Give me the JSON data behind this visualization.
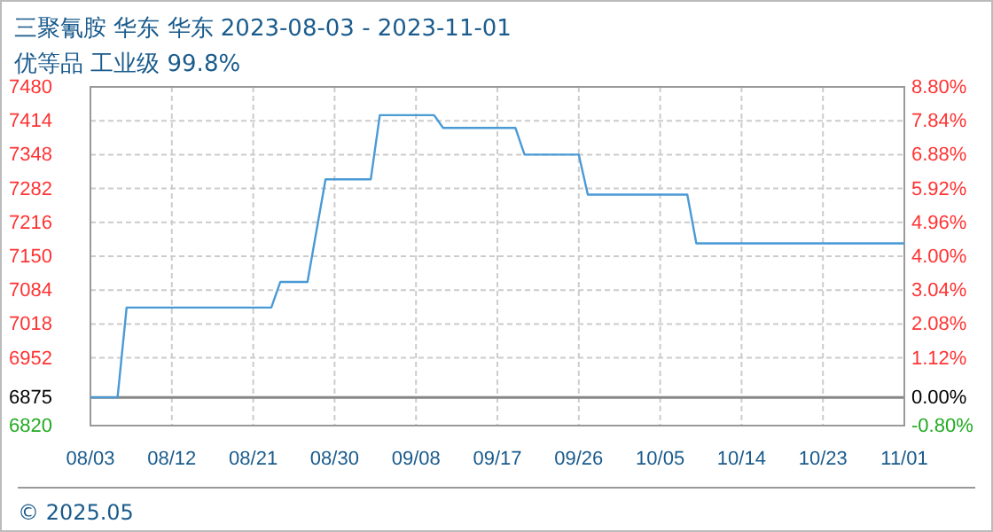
{
  "chart_data": {
    "type": "line",
    "title": "三聚氰胺 华东 华东 2023-08-03 - 2023-11-01",
    "subtitle": "优等品 工业级 99.8%",
    "x": [
      "2023-08-03",
      "2023-08-06",
      "2023-08-07",
      "2023-08-23",
      "2023-08-24",
      "2023-08-27",
      "2023-08-28",
      "2023-08-29",
      "2023-09-03",
      "2023-09-04",
      "2023-09-10",
      "2023-09-11",
      "2023-09-19",
      "2023-09-20",
      "2023-09-26",
      "2023-09-27",
      "2023-10-08",
      "2023-10-09",
      "2023-11-01"
    ],
    "series": [
      {
        "color": "#4a9ad6",
        "values": [
          6875,
          6875,
          7050,
          7050,
          7100,
          7100,
          7200,
          7300,
          7300,
          7425,
          7425,
          7400,
          7400,
          7348,
          7348,
          7270,
          7270,
          7175,
          7175
        ]
      }
    ],
    "xlim": [
      "2023-08-03",
      "2023-11-01"
    ],
    "xticks": [
      {
        "value": "2023-08-03",
        "label": "08/03"
      },
      {
        "value": "2023-08-12",
        "label": "08/12"
      },
      {
        "value": "2023-08-21",
        "label": "08/21"
      },
      {
        "value": "2023-08-30",
        "label": "08/30"
      },
      {
        "value": "2023-09-08",
        "label": "09/08"
      },
      {
        "value": "2023-09-17",
        "label": "09/17"
      },
      {
        "value": "2023-09-26",
        "label": "09/26"
      },
      {
        "value": "2023-10-05",
        "label": "10/05"
      },
      {
        "value": "2023-10-14",
        "label": "10/14"
      },
      {
        "value": "2023-10-23",
        "label": "10/23"
      },
      {
        "value": "2023-11-01",
        "label": "11/01"
      }
    ],
    "ylim": [
      6820,
      7480
    ],
    "yticks": [
      6820,
      6875,
      6952,
      7018,
      7084,
      7150,
      7216,
      7282,
      7348,
      7414,
      7480
    ],
    "y2lim": [
      -0.8,
      8.8
    ],
    "y2ticks": [
      {
        "value": -0.8,
        "label": "-0.80%"
      },
      {
        "value": 0,
        "label": "0.00%"
      },
      {
        "value": 1.12,
        "label": "1.12%"
      },
      {
        "value": 2.08,
        "label": "2.08%"
      },
      {
        "value": 3.04,
        "label": "3.04%"
      },
      {
        "value": 4,
        "label": "4.00%"
      },
      {
        "value": 4.96,
        "label": "4.96%"
      },
      {
        "value": 5.92,
        "label": "5.92%"
      },
      {
        "value": 6.88,
        "label": "6.88%"
      },
      {
        "value": 7.84,
        "label": "7.84%"
      },
      {
        "value": 8.8,
        "label": "8.80%"
      }
    ],
    "ref_lines": [
      {
        "axis": "y",
        "value": 6875,
        "color": "#888888"
      }
    ],
    "grid": true,
    "line_style": "solid",
    "marker": "none",
    "annotations": [
      "© 2025.05"
    ]
  }
}
